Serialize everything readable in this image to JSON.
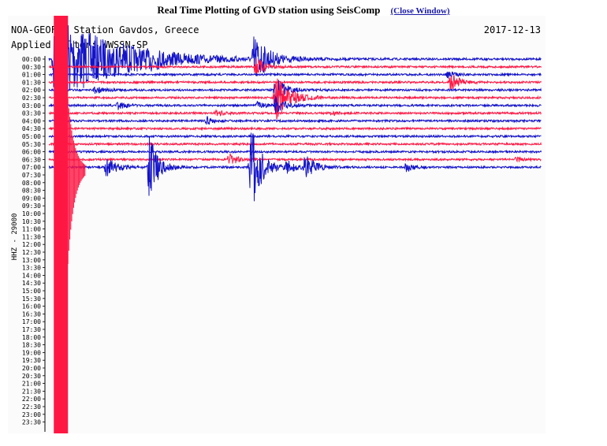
{
  "page": {
    "title": "Real Time Plotting of GVD station using SeisComp",
    "close_label": "(Close Window)"
  },
  "colors": {
    "blue": "#1414c8",
    "red": "#ff1744",
    "axis": "#000000"
  },
  "chart_data": {
    "type": "line",
    "title": "NOA-GEOFON Station Gavdos, Greece",
    "date": "2017-12-13",
    "filter": "Applied filter: WWSSN-SP",
    "ylabel": "HHZ - 29000",
    "row_labels": [
      "00:00",
      "00:30",
      "01:00",
      "01:30",
      "02:00",
      "02:30",
      "03:00",
      "03:30",
      "04:00",
      "04:30",
      "05:00",
      "05:30",
      "06:00",
      "06:30",
      "07:00",
      "07:30",
      "08:00",
      "08:30",
      "09:00",
      "09:30",
      "10:00",
      "10:30",
      "11:00",
      "11:30",
      "12:00",
      "12:30",
      "13:00",
      "13:30",
      "14:00",
      "14:30",
      "15:00",
      "15:30",
      "16:00",
      "16:30",
      "17:00",
      "17:30",
      "18:00",
      "18:30",
      "19:00",
      "19:30",
      "20:00",
      "20:30",
      "21:00",
      "21:30",
      "22:00",
      "22:30",
      "23:00",
      "23:30"
    ],
    "row_colors": [
      "blue",
      "red"
    ],
    "rows_recorded": 15,
    "x_range_minutes": [
      0,
      30
    ],
    "events": [
      {
        "row": 0,
        "minute": 0.3,
        "amplitude": 60,
        "decay": 3.5,
        "color": "red"
      },
      {
        "row": 0,
        "minute": 12.5,
        "amplitude": 32,
        "decay": 0.8,
        "color": "red"
      },
      {
        "row": 1,
        "minute": 12.6,
        "amplitude": 13,
        "decay": 0.5,
        "color": "red"
      },
      {
        "row": 0,
        "minute": 4.3,
        "amplitude": 4,
        "decay": 0.6,
        "color": "blue"
      },
      {
        "row": 0,
        "minute": 6.2,
        "amplitude": 5,
        "decay": 0.6,
        "color": "blue"
      },
      {
        "row": 14,
        "minute": 3.5,
        "amplitude": 14,
        "decay": 0.6,
        "color": "blue"
      },
      {
        "row": 14,
        "minute": 6.1,
        "amplitude": 44,
        "decay": 0.5,
        "color": "red"
      },
      {
        "row": 14,
        "minute": 12.3,
        "amplitude": 60,
        "decay": 0.6,
        "color": "red"
      },
      {
        "row": 14,
        "minute": 14.5,
        "amplitude": 8,
        "decay": 0.5,
        "color": "red"
      },
      {
        "row": 14,
        "minute": 15.6,
        "amplitude": 16,
        "decay": 0.6,
        "color": "blue"
      },
      {
        "row": 14,
        "minute": 21.8,
        "amplitude": 6,
        "decay": 0.4,
        "color": "blue"
      },
      {
        "row": 4,
        "minute": 2.8,
        "amplitude": 5,
        "decay": 0.5,
        "color": "blue"
      },
      {
        "row": 6,
        "minute": 4.2,
        "amplitude": 5,
        "decay": 0.5,
        "color": "blue"
      },
      {
        "row": 3,
        "minute": 24.5,
        "amplitude": 12,
        "decay": 0.5,
        "color": "red"
      },
      {
        "row": 2,
        "minute": 24.3,
        "amplitude": 5,
        "decay": 0.4,
        "color": "blue"
      },
      {
        "row": 6,
        "minute": 12.7,
        "amplitude": 6,
        "decay": 0.4,
        "color": "blue"
      },
      {
        "row": 7,
        "minute": 10.2,
        "amplitude": 4,
        "decay": 0.4,
        "color": "red"
      },
      {
        "row": 7,
        "minute": 17.2,
        "amplitude": 3,
        "decay": 0.4,
        "color": "red"
      },
      {
        "row": 8,
        "minute": 9.6,
        "amplitude": 6,
        "decay": 0.3,
        "color": "blue"
      },
      {
        "row": 5,
        "minute": 13.8,
        "amplitude": 30,
        "decay": 0.8,
        "color": "blue"
      },
      {
        "row": 4,
        "minute": 13.8,
        "amplitude": 16,
        "decay": 0.6,
        "color": "blue"
      },
      {
        "row": 6,
        "minute": 13.8,
        "amplitude": 10,
        "decay": 0.6,
        "color": "blue"
      },
      {
        "row": 13,
        "minute": 11.0,
        "amplitude": 8,
        "decay": 0.5,
        "color": "red"
      },
      {
        "row": 13,
        "minute": 28.5,
        "amplitude": 3,
        "decay": 0.3,
        "color": "red"
      }
    ]
  }
}
